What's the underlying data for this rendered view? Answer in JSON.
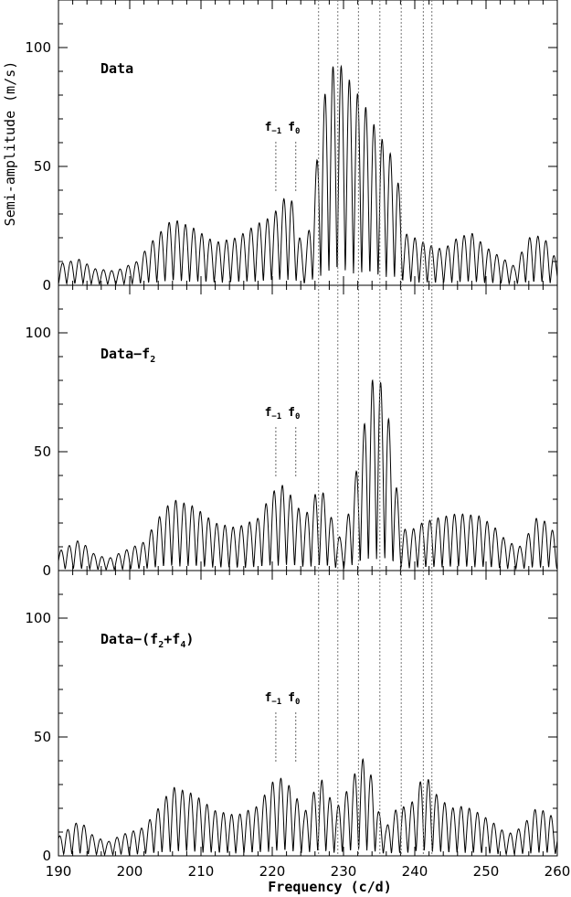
{
  "chart_data": {
    "type": "line",
    "xlabel": "Frequency (c/d)",
    "ylabel": "Semi-amplitude (m/s)",
    "xlim": [
      190,
      260
    ],
    "x_ticks": [
      190,
      200,
      210,
      220,
      230,
      240,
      250,
      260
    ],
    "x_tick_labels": [
      "190",
      "200",
      "210",
      "220",
      "230",
      "240",
      "250",
      "260"
    ],
    "ylim": [
      0,
      120
    ],
    "y_ticks": [
      0,
      50,
      100
    ],
    "y_tick_labels": [
      "0",
      "50",
      "100"
    ],
    "grid": false,
    "reference_lines": [
      226.5,
      229.2,
      232.1,
      235.1,
      238.1,
      241.2,
      242.4
    ],
    "frequency_markers": [
      {
        "name": "f-1",
        "label_main": "f",
        "label_sub": "−1",
        "x": 220.5
      },
      {
        "name": "f0",
        "label_main": "f",
        "label_sub": "0",
        "x": 223.3
      }
    ],
    "panels": [
      {
        "label_main": "Data",
        "label_sub": "",
        "label_tail": "",
        "envelope": [
          [
            190,
            9
          ],
          [
            193,
            11
          ],
          [
            195,
            7
          ],
          [
            198,
            6
          ],
          [
            201,
            10
          ],
          [
            203,
            18
          ],
          [
            206,
            28
          ],
          [
            209,
            24
          ],
          [
            212,
            18
          ],
          [
            215,
            20
          ],
          [
            218,
            26
          ],
          [
            220,
            29
          ],
          [
            221.5,
            36
          ],
          [
            222.5,
            39
          ],
          [
            223.5,
            25
          ],
          [
            224.5,
            12
          ],
          [
            225.5,
            30
          ],
          [
            226.5,
            60
          ],
          [
            227.5,
            83
          ],
          [
            228.5,
            92
          ],
          [
            229.5,
            93
          ],
          [
            230.5,
            88
          ],
          [
            231.5,
            83
          ],
          [
            232.5,
            78
          ],
          [
            233.5,
            73
          ],
          [
            234.5,
            66
          ],
          [
            235.5,
            61
          ],
          [
            236.5,
            56
          ],
          [
            237.5,
            48
          ],
          [
            238.5,
            22
          ],
          [
            240,
            20
          ],
          [
            242,
            17
          ],
          [
            244,
            15
          ],
          [
            246,
            20
          ],
          [
            248,
            22
          ],
          [
            250,
            16
          ],
          [
            252,
            12
          ],
          [
            254,
            8
          ],
          [
            256,
            20
          ],
          [
            258,
            21
          ],
          [
            260,
            10
          ]
        ]
      },
      {
        "label_main": "Data−f",
        "label_sub": "2",
        "label_tail": "",
        "envelope": [
          [
            190,
            8
          ],
          [
            193,
            13
          ],
          [
            195,
            7
          ],
          [
            197,
            5
          ],
          [
            199,
            8
          ],
          [
            202,
            12
          ],
          [
            204,
            22
          ],
          [
            206,
            30
          ],
          [
            209,
            27
          ],
          [
            212,
            20
          ],
          [
            215,
            18
          ],
          [
            218,
            22
          ],
          [
            220,
            33
          ],
          [
            221.5,
            36
          ],
          [
            223,
            30
          ],
          [
            224.5,
            22
          ],
          [
            226,
            32
          ],
          [
            227,
            34
          ],
          [
            228,
            25
          ],
          [
            229,
            16
          ],
          [
            230,
            12
          ],
          [
            231,
            30
          ],
          [
            232,
            45
          ],
          [
            233,
            63
          ],
          [
            234,
            80
          ],
          [
            235,
            81
          ],
          [
            236,
            72
          ],
          [
            237,
            48
          ],
          [
            238,
            20
          ],
          [
            239,
            16
          ],
          [
            241,
            20
          ],
          [
            243,
            22
          ],
          [
            246,
            24
          ],
          [
            249,
            23
          ],
          [
            251,
            19
          ],
          [
            253,
            12
          ],
          [
            255,
            10
          ],
          [
            257,
            22
          ],
          [
            259,
            20
          ],
          [
            260,
            11
          ]
        ]
      },
      {
        "label_main": "Data−(f",
        "label_sub": "2",
        "label_tail": "+f4)",
        "envelope": [
          [
            190,
            8
          ],
          [
            193,
            15
          ],
          [
            195,
            8
          ],
          [
            197,
            6
          ],
          [
            199,
            9
          ],
          [
            202,
            12
          ],
          [
            204,
            20
          ],
          [
            206,
            29
          ],
          [
            209,
            26
          ],
          [
            212,
            19
          ],
          [
            215,
            17
          ],
          [
            218,
            21
          ],
          [
            220,
            31
          ],
          [
            221.5,
            33
          ],
          [
            223,
            27
          ],
          [
            224.5,
            18
          ],
          [
            226,
            28
          ],
          [
            227,
            32
          ],
          [
            228,
            25
          ],
          [
            229,
            20
          ],
          [
            231,
            30
          ],
          [
            232,
            38
          ],
          [
            232.8,
            41
          ],
          [
            234,
            33
          ],
          [
            235,
            18
          ],
          [
            236,
            12
          ],
          [
            237,
            18
          ],
          [
            238,
            22
          ],
          [
            239,
            19
          ],
          [
            240,
            25
          ],
          [
            241,
            33
          ],
          [
            242,
            32
          ],
          [
            243,
            26
          ],
          [
            245,
            20
          ],
          [
            247,
            21
          ],
          [
            249,
            18
          ],
          [
            251,
            14
          ],
          [
            253,
            9
          ],
          [
            255,
            12
          ],
          [
            257,
            20
          ],
          [
            259,
            18
          ],
          [
            260,
            10
          ]
        ]
      }
    ]
  }
}
